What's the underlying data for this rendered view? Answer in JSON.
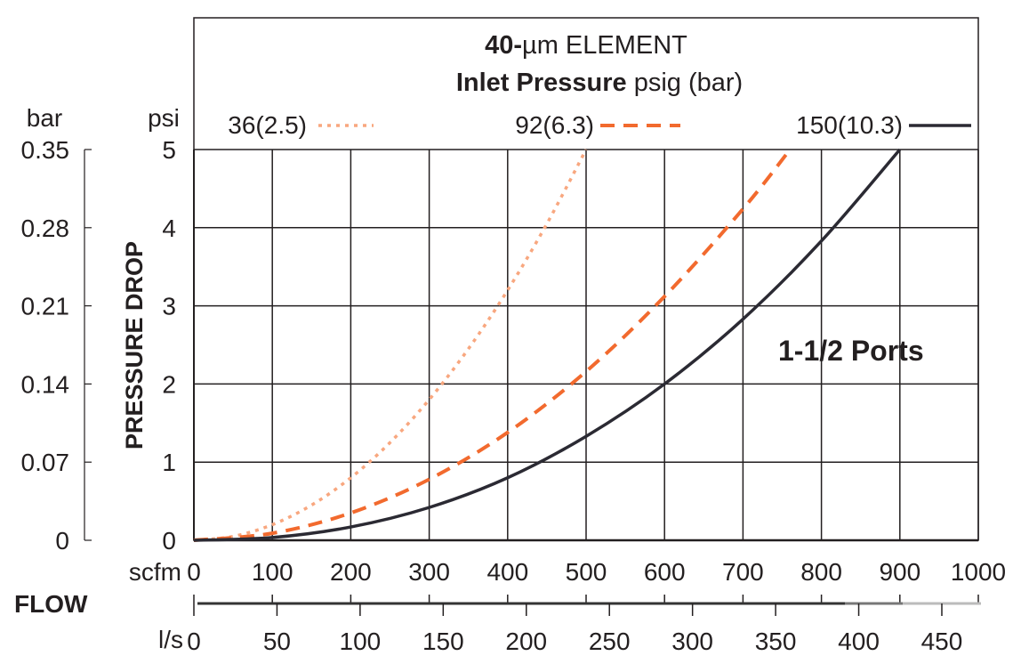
{
  "chart_data": {
    "type": "line",
    "title": "40-µm ELEMENT",
    "title_bold_part": "40-",
    "title_rest": "µm ELEMENT",
    "legend_title_bold": "Inlet Pressure",
    "legend_title_rest": " psig (bar)",
    "legend_placement": "top",
    "annotation": "1-1/2 Ports",
    "ylabel": "PRESSURE DROP",
    "y_unit_primary": "psi",
    "y_unit_secondary": "bar",
    "xlabel": "FLOW",
    "x_unit_primary": "scfm",
    "x_unit_secondary": "l/s",
    "xlim": [
      0,
      1000
    ],
    "ylim": [
      0,
      5
    ],
    "grid": true,
    "x_ticks": [
      "0",
      "100",
      "200",
      "300",
      "400",
      "500",
      "600",
      "700",
      "800",
      "900",
      "1000"
    ],
    "y_ticks": [
      "0",
      "1",
      "2",
      "3",
      "4",
      "5"
    ],
    "bar_ticks": [
      "0",
      "0.07",
      "0.14",
      "0.21",
      "0.28",
      "0.35"
    ],
    "ls_ticks": [
      "0",
      "50",
      "100",
      "150",
      "200",
      "250",
      "300",
      "350",
      "400",
      "450"
    ],
    "series": [
      {
        "name": "36(2.5)",
        "style": "dotted",
        "color": "#f8a77f",
        "x": [
          0,
          50,
          100,
          150,
          200,
          250,
          300,
          350,
          400,
          450,
          500
        ],
        "y": [
          0,
          0.05,
          0.2,
          0.45,
          0.8,
          1.25,
          1.8,
          2.45,
          3.2,
          4.05,
          5
        ]
      },
      {
        "name": "92(6.3)",
        "style": "dashed",
        "color": "#f26a2e",
        "x": [
          0,
          100,
          200,
          300,
          400,
          500,
          600,
          700,
          760
        ],
        "y": [
          0,
          0.09,
          0.35,
          0.78,
          1.38,
          2.16,
          3.12,
          4.24,
          5
        ]
      },
      {
        "name": "150(10.3)",
        "style": "solid",
        "color": "#2b2a33",
        "x": [
          0,
          100,
          200,
          300,
          400,
          500,
          600,
          700,
          800,
          900
        ],
        "y": [
          0,
          0.035,
          0.17,
          0.42,
          0.8,
          1.33,
          2.0,
          2.83,
          3.83,
          5
        ]
      }
    ]
  }
}
